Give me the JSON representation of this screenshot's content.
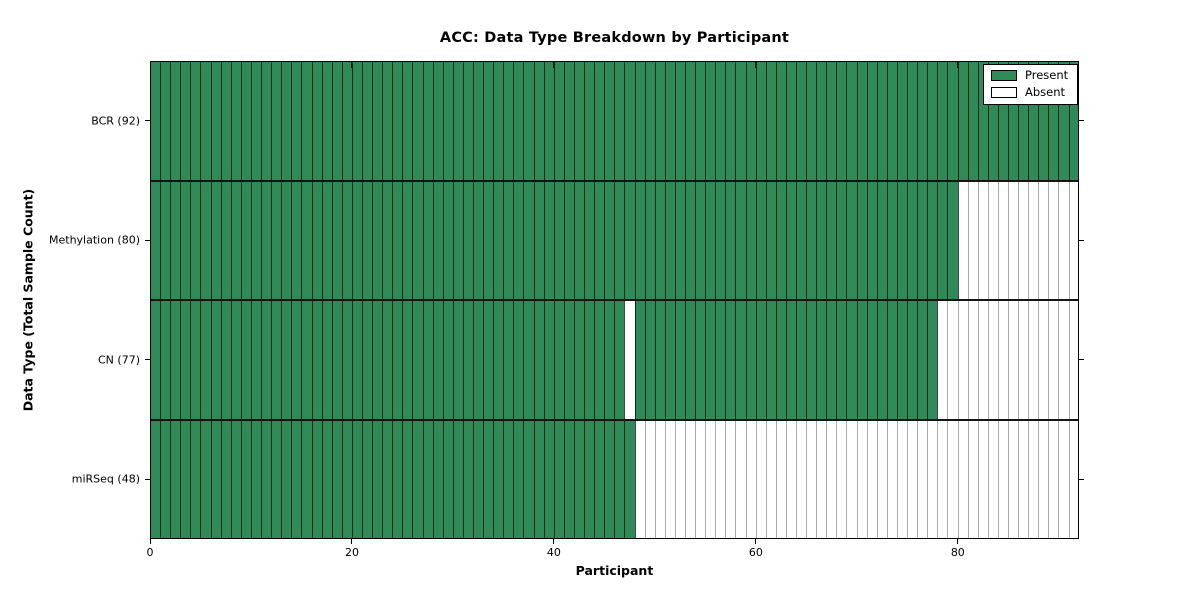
{
  "figure": {
    "title": "ACC: Data Type Breakdown by Participant",
    "xlabel": "Participant",
    "ylabel": "Data Type (Total Sample Count)"
  },
  "chart_data": {
    "type": "heatmap",
    "title": "ACC: Data Type Breakdown by Participant",
    "xlabel": "Participant",
    "ylabel": "Data Type (Total Sample Count)",
    "x_ticks": [
      0,
      20,
      40,
      60,
      80
    ],
    "xlim": [
      0,
      92
    ],
    "n_participants": 92,
    "grid": false,
    "legend_position": "upper right",
    "colors": {
      "present": "#2e8b57",
      "absent": "#ffffff",
      "cell_border": "#000000"
    },
    "legend": [
      {
        "label": "Present",
        "color": "#2e8b57"
      },
      {
        "label": "Absent",
        "color": "#ffffff"
      }
    ],
    "rows": [
      {
        "label": "BCR (92)",
        "data_type": "BCR",
        "total_sample_count": 92,
        "present_ranges": [
          [
            0,
            92
          ]
        ],
        "absent_ranges": []
      },
      {
        "label": "Methylation (80)",
        "data_type": "Methylation",
        "total_sample_count": 80,
        "present_ranges": [
          [
            0,
            80
          ]
        ],
        "absent_ranges": [
          [
            80,
            92
          ]
        ]
      },
      {
        "label": "CN (77)",
        "data_type": "CN",
        "total_sample_count": 77,
        "present_ranges": [
          [
            0,
            47
          ],
          [
            48,
            78
          ]
        ],
        "absent_ranges": [
          [
            47,
            48
          ],
          [
            78,
            92
          ]
        ]
      },
      {
        "label": "miRSeq (48)",
        "data_type": "miRSeq",
        "total_sample_count": 48,
        "present_ranges": [
          [
            0,
            48
          ]
        ],
        "absent_ranges": [
          [
            48,
            92
          ]
        ]
      }
    ]
  }
}
